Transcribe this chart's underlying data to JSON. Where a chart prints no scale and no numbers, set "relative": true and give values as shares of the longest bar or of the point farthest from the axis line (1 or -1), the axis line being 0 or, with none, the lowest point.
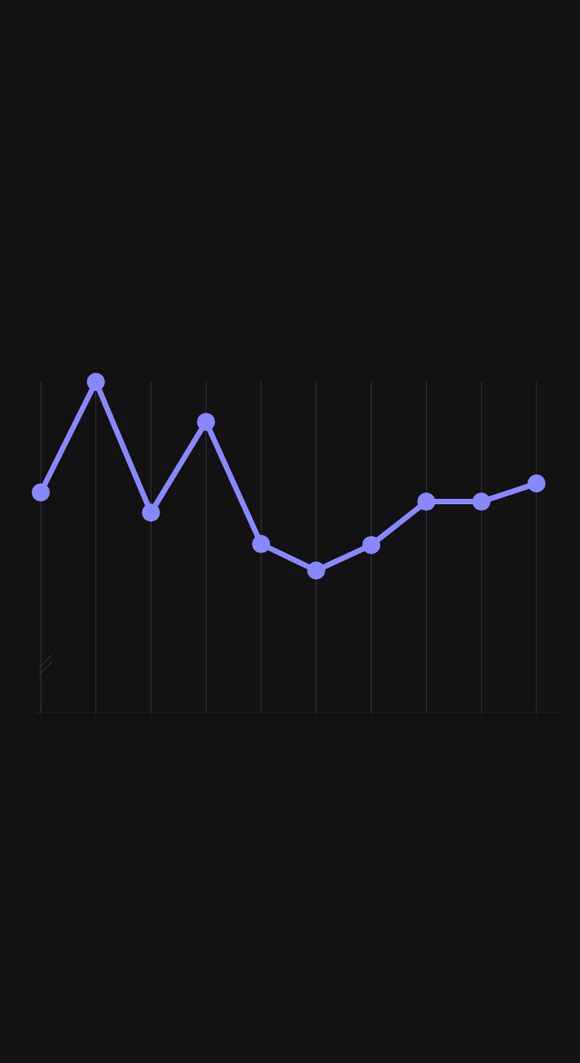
{
  "chart_data": {
    "type": "line",
    "relative": true,
    "categories": [
      null,
      null,
      null,
      null,
      null,
      null,
      null,
      null,
      null,
      null
    ],
    "series": [
      {
        "color": "#8888ff",
        "values": [
          0.666,
          1,
          0.605,
          0.879,
          0.51,
          0.43,
          0.507,
          0.638,
          0.638,
          0.693
        ]
      }
    ],
    "marker": "circle",
    "grid": "x",
    "tick_labels": false
  }
}
